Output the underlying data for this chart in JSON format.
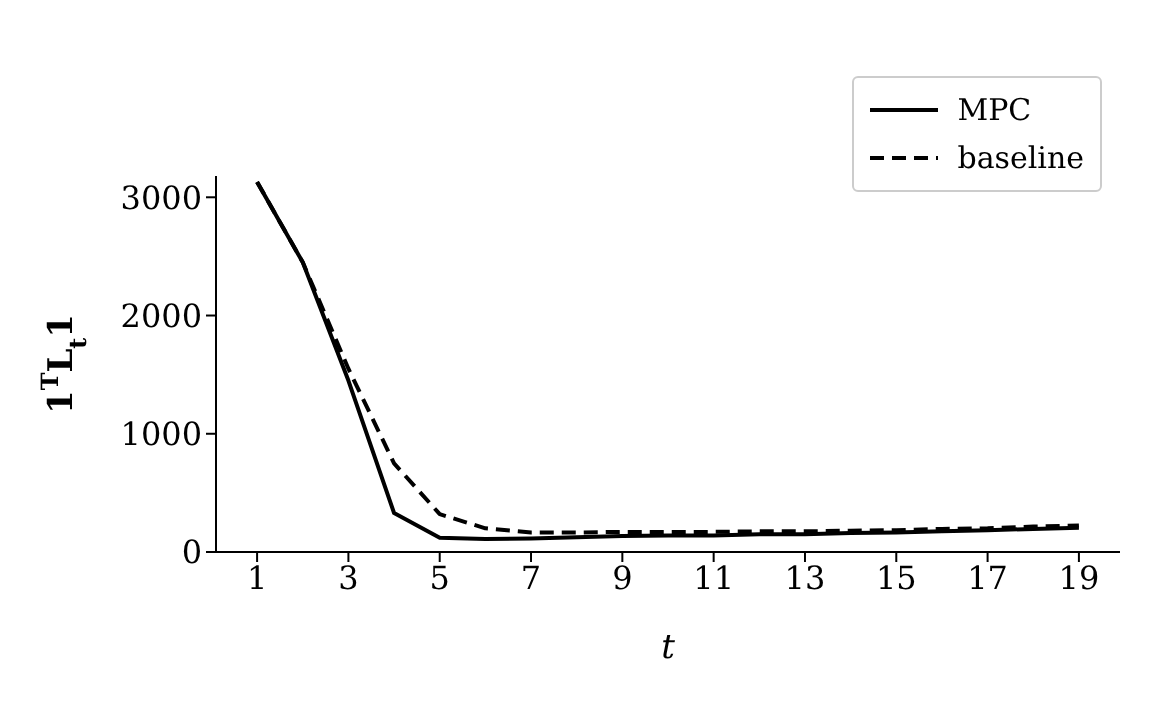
{
  "chart_data": {
    "type": "line",
    "xlabel": "t",
    "ylabel": "1$^{T}$L$_{t}$1",
    "x": [
      1,
      2,
      3,
      4,
      5,
      6,
      7,
      8,
      9,
      10,
      11,
      12,
      13,
      14,
      15,
      16,
      17,
      18,
      19
    ],
    "series": [
      {
        "name": "MPC",
        "color": "#000000",
        "line_style": "solid",
        "values": [
          3130,
          2450,
          1450,
          330,
          120,
          110,
          115,
          125,
          135,
          140,
          140,
          150,
          150,
          160,
          165,
          175,
          185,
          195,
          205
        ]
      },
      {
        "name": "baseline",
        "color": "#000000",
        "line_style": "dashed",
        "values": [
          3130,
          2450,
          1550,
          750,
          320,
          200,
          165,
          165,
          170,
          170,
          170,
          175,
          175,
          180,
          185,
          195,
          200,
          215,
          225
        ]
      }
    ],
    "xlim": [
      0.1,
      19.9
    ],
    "xticks": [
      1,
      3,
      5,
      7,
      9,
      11,
      13,
      15,
      17,
      19
    ],
    "ylim": [
      0,
      3180
    ],
    "yticks": [
      0,
      1000,
      2000,
      3000
    ],
    "grid": false,
    "legend": "top right",
    "marker": "none"
  }
}
